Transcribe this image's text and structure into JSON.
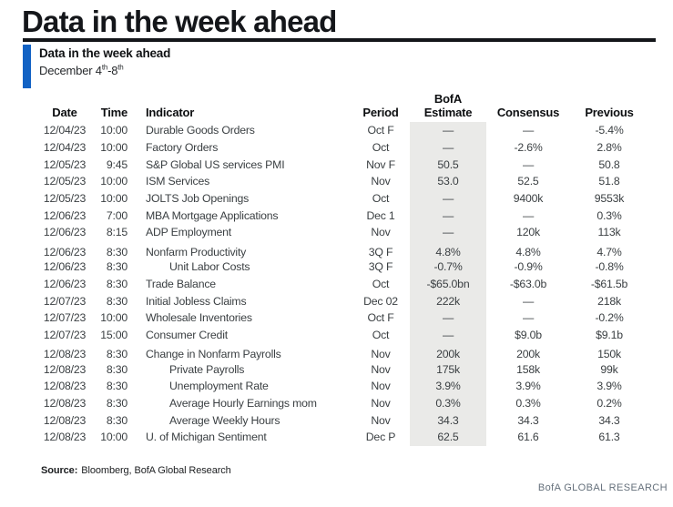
{
  "page": {
    "title": "Data in the week ahead"
  },
  "exhibit": {
    "title": "Data in the week ahead",
    "subtitle": {
      "prefix": "December 4",
      "sup1": "th",
      "mid": "-8",
      "sup2": "th"
    }
  },
  "table": {
    "columns": [
      {
        "key": "date",
        "label": "Date"
      },
      {
        "key": "time",
        "label": "Time"
      },
      {
        "key": "indicator",
        "label": "Indicator"
      },
      {
        "key": "period",
        "label": "Period"
      },
      {
        "key": "estimate",
        "label": "Estimate",
        "label_top": "BofA"
      },
      {
        "key": "consensus",
        "label": "Consensus"
      },
      {
        "key": "previous",
        "label": "Previous"
      }
    ],
    "rows": [
      {
        "date": "12/04/23",
        "time": "10:00",
        "indicator": "Durable Goods Orders",
        "indent": false,
        "period": "Oct F",
        "estimate": "—",
        "consensus": "—",
        "previous": "-5.4%"
      },
      {
        "date": "12/04/23",
        "time": "10:00",
        "indicator": "Factory Orders",
        "indent": false,
        "period": "Oct",
        "estimate": "—",
        "consensus": "-2.6%",
        "previous": "2.8%"
      },
      {
        "date": "12/05/23",
        "time": "9:45",
        "indicator": "S&P Global US services PMI",
        "indent": false,
        "period": "Nov F",
        "estimate": "50.5",
        "consensus": "—",
        "previous": "50.8"
      },
      {
        "date": "12/05/23",
        "time": "10:00",
        "indicator": "ISM Services",
        "indent": false,
        "period": "Nov",
        "estimate": "53.0",
        "consensus": "52.5",
        "previous": "51.8"
      },
      {
        "date": "12/05/23",
        "time": "10:00",
        "indicator": "JOLTS Job Openings",
        "indent": false,
        "period": "Oct",
        "estimate": "—",
        "consensus": "9400k",
        "previous": "9553k"
      },
      {
        "date": "12/06/23",
        "time": "7:00",
        "indicator": "MBA Mortgage Applications",
        "indent": false,
        "period": "Dec 1",
        "estimate": "—",
        "consensus": "—",
        "previous": "0.3%"
      },
      {
        "date": "12/06/23",
        "time": "8:15",
        "indicator": "ADP Employment",
        "indent": false,
        "period": "Nov",
        "estimate": "—",
        "consensus": "120k",
        "previous": "113k"
      },
      {
        "date": "12/06/23",
        "time": "8:30",
        "indicator": "Nonfarm Productivity",
        "indent": false,
        "period": "3Q F",
        "estimate": "4.8%",
        "consensus": "4.8%",
        "previous": "4.7%",
        "gap": true
      },
      {
        "date": "12/06/23",
        "time": "8:30",
        "indicator": "Unit Labor Costs",
        "indent": true,
        "period": "3Q F",
        "estimate": "-0.7%",
        "consensus": "-0.9%",
        "previous": "-0.8%"
      },
      {
        "date": "12/06/23",
        "time": "8:30",
        "indicator": "Trade Balance",
        "indent": false,
        "period": "Oct",
        "estimate": "-$65.0bn",
        "consensus": "-$63.0b",
        "previous": "-$61.5b"
      },
      {
        "date": "12/07/23",
        "time": "8:30",
        "indicator": "Initial Jobless Claims",
        "indent": false,
        "period": "Dec 02",
        "estimate": "222k",
        "consensus": "—",
        "previous": "218k"
      },
      {
        "date": "12/07/23",
        "time": "10:00",
        "indicator": "Wholesale Inventories",
        "indent": false,
        "period": "Oct F",
        "estimate": "—",
        "consensus": "—",
        "previous": "-0.2%"
      },
      {
        "date": "12/07/23",
        "time": "15:00",
        "indicator": "Consumer Credit",
        "indent": false,
        "period": "Oct",
        "estimate": "—",
        "consensus": "$9.0b",
        "previous": "$9.1b"
      },
      {
        "date": "12/08/23",
        "time": "8:30",
        "indicator": "Change in Nonfarm Payrolls",
        "indent": false,
        "period": "Nov",
        "estimate": "200k",
        "consensus": "200k",
        "previous": "150k",
        "gap": true
      },
      {
        "date": "12/08/23",
        "time": "8:30",
        "indicator": "Private Payrolls",
        "indent": true,
        "period": "Nov",
        "estimate": "175k",
        "consensus": "158k",
        "previous": "99k"
      },
      {
        "date": "12/08/23",
        "time": "8:30",
        "indicator": "Unemployment Rate",
        "indent": true,
        "period": "Nov",
        "estimate": "3.9%",
        "consensus": "3.9%",
        "previous": "3.9%"
      },
      {
        "date": "12/08/23",
        "time": "8:30",
        "indicator": "Average Hourly Earnings mom",
        "indent": true,
        "period": "Nov",
        "estimate": "0.3%",
        "consensus": "0.3%",
        "previous": "0.2%"
      },
      {
        "date": "12/08/23",
        "time": "8:30",
        "indicator": "Average Weekly Hours",
        "indent": true,
        "period": "Nov",
        "estimate": "34.3",
        "consensus": "34.3",
        "previous": "34.3"
      },
      {
        "date": "12/08/23",
        "time": "10:00",
        "indicator": "U. of Michigan Sentiment",
        "indent": false,
        "period": "Dec P",
        "estimate": "62.5",
        "consensus": "61.6",
        "previous": "61.3"
      }
    ]
  },
  "footer": {
    "source_label": "Source:",
    "source_text": "Bloomberg, BofA Global Research",
    "brand": "BofA GLOBAL RESEARCH"
  },
  "colors": {
    "accent_blue": "#1262c4",
    "estimate_column_bg": "#eaeae8",
    "brand_gray": "#66717c"
  }
}
